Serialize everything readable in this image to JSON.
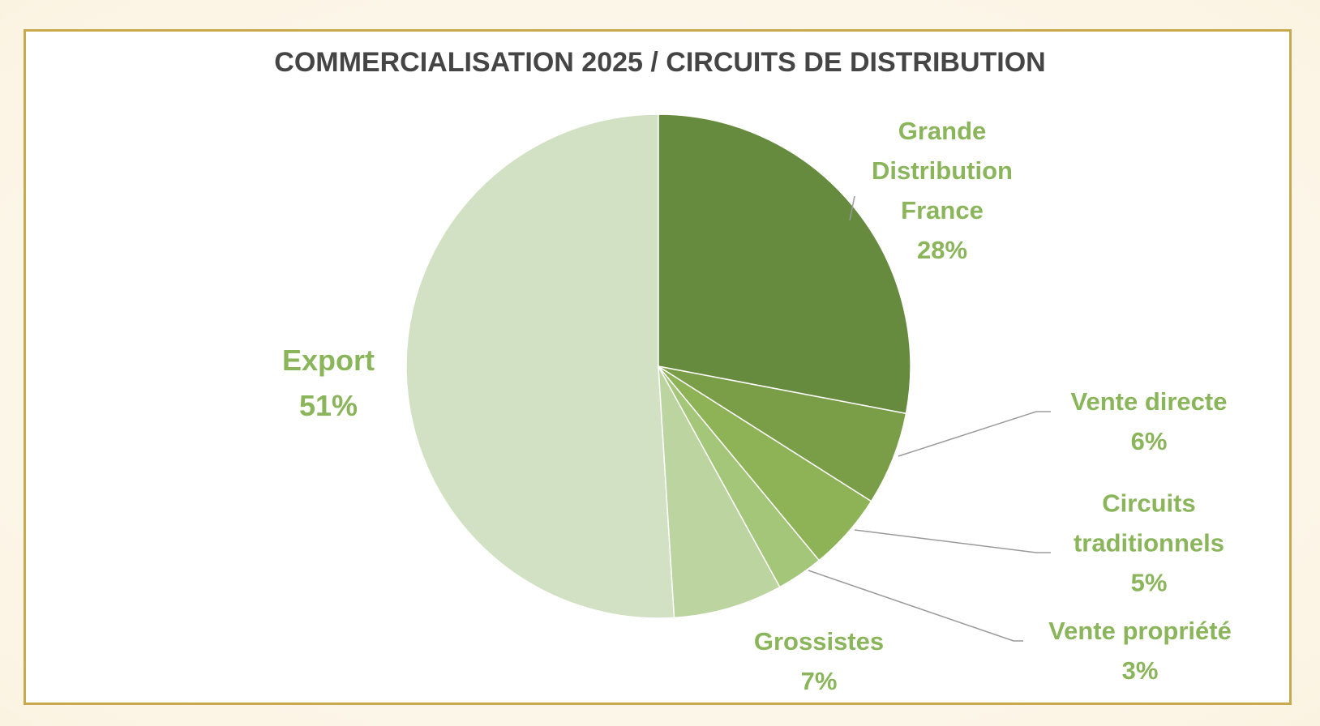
{
  "chart_data": {
    "type": "pie",
    "title": "COMMERCIALISATION 2025 / CIRCUITS DE DISTRIBUTION",
    "categories": [
      "Grande Distribution France",
      "Vente directe",
      "Circuits traditionnels",
      "Vente propriété",
      "Grossistes",
      "Export"
    ],
    "values": [
      28,
      6,
      5,
      3,
      7,
      51
    ],
    "value_labels": [
      "28%",
      "6%",
      "5%",
      "3%",
      "7%",
      "51%"
    ],
    "colors": [
      "#668a3e",
      "#7a9e48",
      "#8db356",
      "#a3c679",
      "#bbd4a0",
      "#d2e0c4"
    ]
  }
}
